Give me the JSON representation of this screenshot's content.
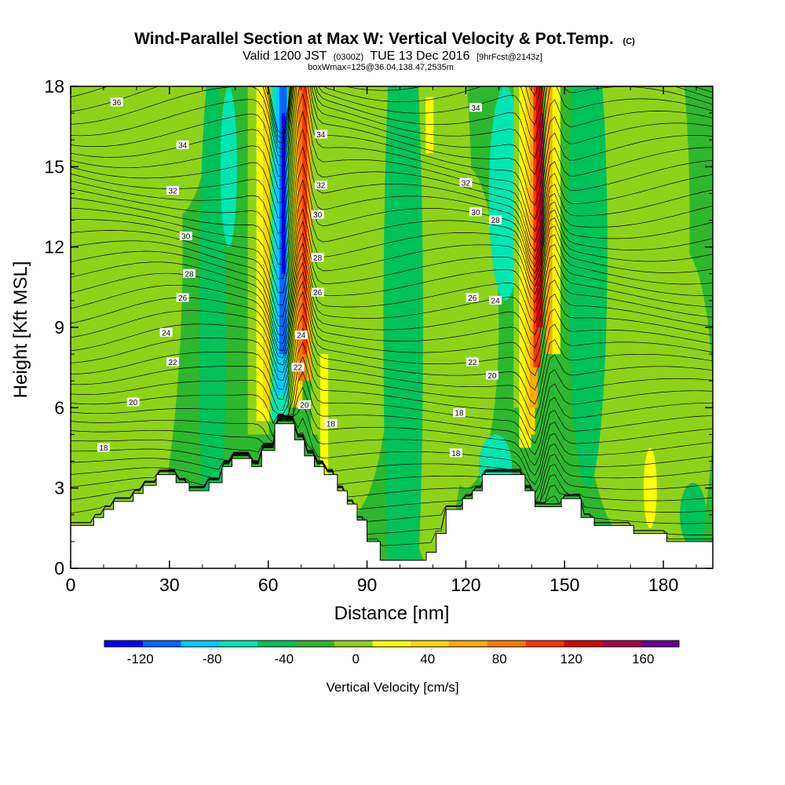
{
  "chart_data": {
    "type": "heatmap",
    "title": "Wind-Parallel Section at Max W: Vertical Velocity & Pot.Temp.",
    "title_tag": "(C)",
    "subtitle_parts": {
      "valid": "Valid 1200 JST",
      "utc": "(0300Z)",
      "date": "TUE 13 Dec 2016",
      "fcst": "[9hrFcst@2143z]"
    },
    "subtitle2": "boxWmax=125@36.04,138.47,2535m",
    "xlabel": "Distance [nm]",
    "ylabel": "Height [Kft MSL]",
    "xlim": [
      0,
      195
    ],
    "ylim": [
      0,
      18
    ],
    "xticks": [
      "0",
      "30",
      "60",
      "90",
      "120",
      "150",
      "180"
    ],
    "yticks": [
      "0",
      "3",
      "6",
      "9",
      "12",
      "15",
      "18"
    ],
    "colorbar": {
      "label": "Vertical Velocity [cm/s]",
      "min": -140,
      "max": 180,
      "step": 20,
      "colors": [
        "#0000ff",
        "#0066ff",
        "#00ccff",
        "#00e6b3",
        "#00c25a",
        "#2eb82e",
        "#8ed31a",
        "#ffff00",
        "#ffd700",
        "#ffaa00",
        "#ff7700",
        "#ff3300",
        "#dd0000",
        "#aa0044",
        "#660099"
      ],
      "tick_labels": [
        "-120",
        "-80",
        "-40",
        "0",
        "40",
        "80",
        "120",
        "160"
      ]
    },
    "terrain": [
      [
        0,
        1.6
      ],
      [
        7,
        1.6
      ],
      [
        7,
        1.9
      ],
      [
        10,
        1.9
      ],
      [
        10,
        2.2
      ],
      [
        13,
        2.2
      ],
      [
        13,
        2.5
      ],
      [
        19,
        2.5
      ],
      [
        19,
        2.8
      ],
      [
        22,
        2.8
      ],
      [
        22,
        3.1
      ],
      [
        26,
        3.1
      ],
      [
        26,
        3.5
      ],
      [
        32,
        3.5
      ],
      [
        32,
        3.2
      ],
      [
        36,
        3.2
      ],
      [
        36,
        2.9
      ],
      [
        42,
        2.9
      ],
      [
        42,
        3.2
      ],
      [
        46,
        3.2
      ],
      [
        46,
        3.8
      ],
      [
        49,
        3.8
      ],
      [
        49,
        4.1
      ],
      [
        55,
        4.1
      ],
      [
        55,
        3.8
      ],
      [
        58,
        3.8
      ],
      [
        58,
        4.4
      ],
      [
        62,
        4.4
      ],
      [
        62,
        5.4
      ],
      [
        68,
        5.4
      ],
      [
        68,
        4.8
      ],
      [
        71,
        4.8
      ],
      [
        71,
        4.2
      ],
      [
        74,
        4.2
      ],
      [
        74,
        3.8
      ],
      [
        77,
        3.8
      ],
      [
        77,
        3.5
      ],
      [
        81,
        3.5
      ],
      [
        81,
        2.9
      ],
      [
        84,
        2.9
      ],
      [
        84,
        2.4
      ],
      [
        87,
        2.4
      ],
      [
        87,
        1.8
      ],
      [
        90,
        1.8
      ],
      [
        90,
        1.0
      ],
      [
        94,
        1.0
      ],
      [
        94,
        0.3
      ],
      [
        108,
        0.3
      ],
      [
        108,
        0.6
      ],
      [
        111,
        0.6
      ],
      [
        111,
        1.3
      ],
      [
        114,
        1.3
      ],
      [
        114,
        2.2
      ],
      [
        119,
        2.2
      ],
      [
        119,
        2.6
      ],
      [
        122,
        2.6
      ],
      [
        122,
        2.9
      ],
      [
        125,
        2.9
      ],
      [
        125,
        3.5
      ],
      [
        138,
        3.5
      ],
      [
        138,
        2.9
      ],
      [
        141,
        2.9
      ],
      [
        141,
        2.3
      ],
      [
        149,
        2.3
      ],
      [
        149,
        2.6
      ],
      [
        155,
        2.6
      ],
      [
        155,
        1.9
      ],
      [
        159,
        1.9
      ],
      [
        159,
        1.6
      ],
      [
        171,
        1.6
      ],
      [
        171,
        1.3
      ],
      [
        181,
        1.3
      ],
      [
        181,
        1.0
      ],
      [
        195,
        1.0
      ]
    ],
    "theta_label_values": [
      36,
      34,
      32,
      30,
      28,
      26,
      24,
      22,
      20,
      18
    ]
  }
}
